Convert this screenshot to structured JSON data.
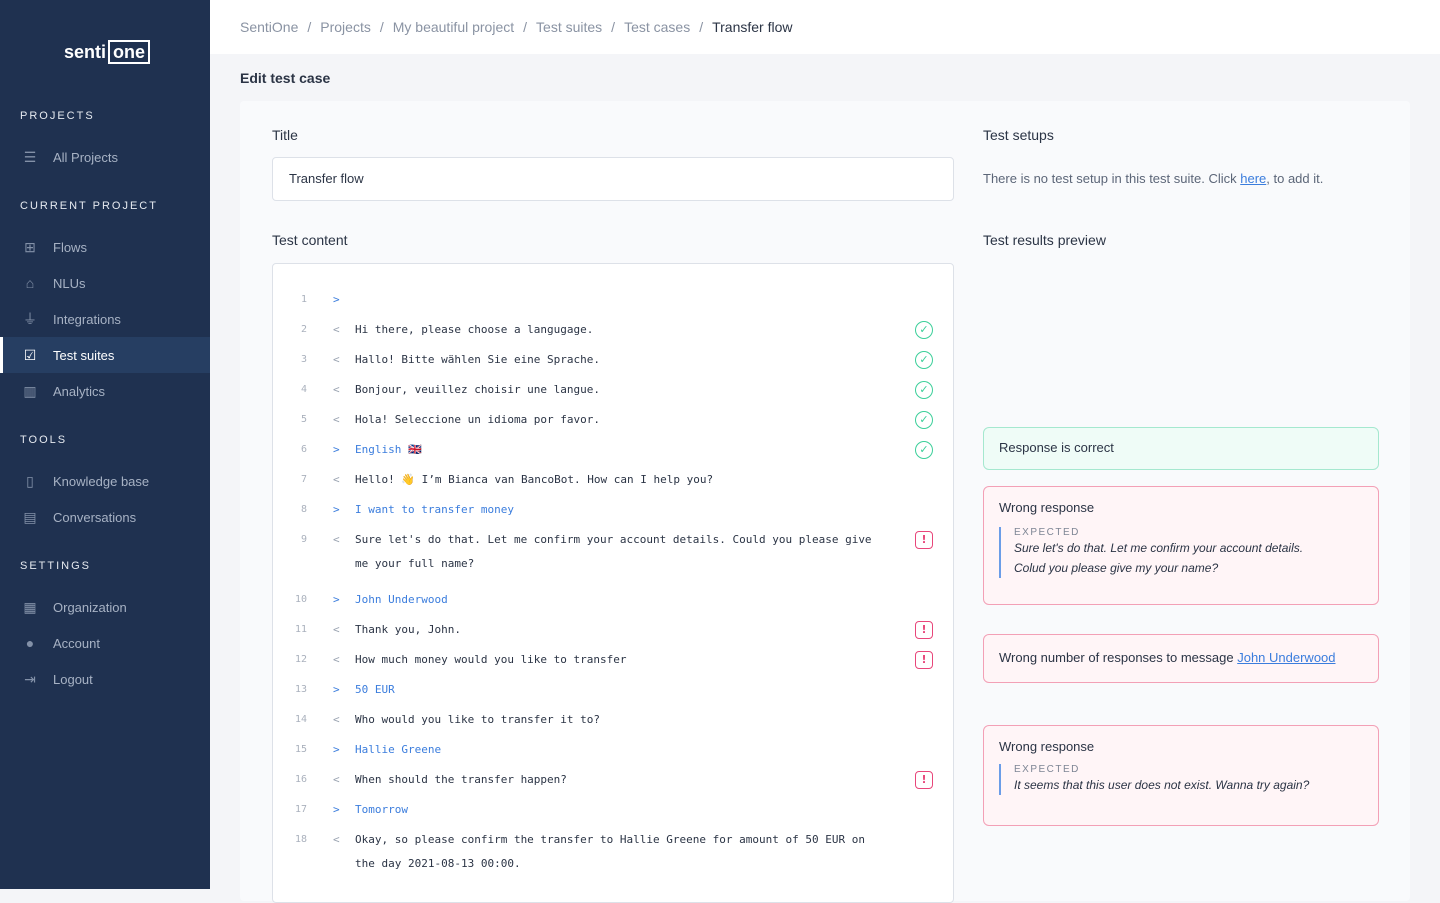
{
  "logo": {
    "text": "senti",
    "box": "one"
  },
  "sidebar": {
    "sections": [
      "PROJECTS",
      "CURRENT PROJECT",
      "TOOLS",
      "SETTINGS"
    ],
    "items": [
      {
        "label": "All Projects",
        "icon": "list-icon",
        "glyph": "☰"
      },
      {
        "label": "Flows",
        "icon": "flows-icon",
        "glyph": "⊞"
      },
      {
        "label": "NLUs",
        "icon": "graduation-cap-icon",
        "glyph": "⌂"
      },
      {
        "label": "Integrations",
        "icon": "plug-icon",
        "glyph": "⏚"
      },
      {
        "label": "Test suites",
        "icon": "test-suites-icon",
        "glyph": "☑"
      },
      {
        "label": "Analytics",
        "icon": "analytics-icon",
        "glyph": "▥"
      },
      {
        "label": "Knowledge base",
        "icon": "book-icon",
        "glyph": "▯"
      },
      {
        "label": "Conversations",
        "icon": "chat-icon",
        "glyph": "▤"
      },
      {
        "label": "Organization",
        "icon": "building-icon",
        "glyph": "▦"
      },
      {
        "label": "Account",
        "icon": "user-icon",
        "glyph": "●"
      },
      {
        "label": "Logout",
        "icon": "logout-icon",
        "glyph": "⇥"
      }
    ]
  },
  "breadcrumb": [
    "SentiOne",
    "Projects",
    "My beautiful project",
    "Test suites",
    "Test cases",
    "Transfer flow"
  ],
  "page_title": "Edit test case",
  "form": {
    "title_label": "Title",
    "title_value": "Transfer flow",
    "content_label": "Test content",
    "setups_label": "Test setups",
    "setups_text": "There is no test setup in this test suite. Click ",
    "setups_link": "here",
    "setups_after": ", to add it.",
    "preview_label": "Test results preview"
  },
  "lines": [
    {
      "n": "1",
      "dir": ">",
      "text": "",
      "status": ""
    },
    {
      "n": "2",
      "dir": "<",
      "text": "Hi there, please choose a langugage.",
      "status": "ok"
    },
    {
      "n": "3",
      "dir": "<",
      "text": "Hallo! Bitte wählen Sie eine Sprache.",
      "status": "ok"
    },
    {
      "n": "4",
      "dir": "<",
      "text": "Bonjour, veuillez choisir une langue.",
      "status": "ok"
    },
    {
      "n": "5",
      "dir": "<",
      "text": "Hola! Seleccione un idioma por favor.",
      "status": "ok"
    },
    {
      "n": "6",
      "dir": ">",
      "text": "English 🇬🇧",
      "status": "ok"
    },
    {
      "n": "7",
      "dir": "<",
      "text": "Hello! 👋 I’m Bianca van BancoBot. How can I help you?",
      "status": ""
    },
    {
      "n": "8",
      "dir": ">",
      "text": "I want to transfer money",
      "status": ""
    },
    {
      "n": "9",
      "dir": "<",
      "text": "Sure let's do that. Let me confirm your account details. Could you please give me your full name?",
      "status": "error"
    },
    {
      "n": "10",
      "dir": ">",
      "text": "John Underwood",
      "status": ""
    },
    {
      "n": "11",
      "dir": "<",
      "text": "Thank you, John.",
      "status": "error"
    },
    {
      "n": "12",
      "dir": "<",
      "text": "How much money would you like to transfer",
      "status": "error"
    },
    {
      "n": "13",
      "dir": ">",
      "text": "50 EUR",
      "status": ""
    },
    {
      "n": "14",
      "dir": "<",
      "text": "Who would you like to transfer it to?",
      "status": ""
    },
    {
      "n": "15",
      "dir": ">",
      "text": "Hallie Greene",
      "status": ""
    },
    {
      "n": "16",
      "dir": "<",
      "text": "When should the transfer happen?",
      "status": "error"
    },
    {
      "n": "17",
      "dir": ">",
      "text": "Tomorrow",
      "status": ""
    },
    {
      "n": "18",
      "dir": "<",
      "text": "Okay, so please confirm the transfer to Hallie Greene for amount of 50 EUR on the day 2021-08-13 00:00.",
      "status": ""
    }
  ],
  "results": {
    "correct": "Response is correct",
    "wrong1": {
      "title": "Wrong response",
      "expected_label": "EXPECTED",
      "expected": "Sure let's do that. Let me confirm your account details.",
      "expected2": "Colud you please give my your name?"
    },
    "count": {
      "text": "Wrong number of responses to message ",
      "link": "John Underwood"
    },
    "wrong2": {
      "title": "Wrong response",
      "expected_label": "EXPECTED",
      "expected": "It seems that this user does not exist. Wanna try again?"
    }
  },
  "colors": {
    "sidebar": "#1f3150",
    "accent": "#3b7ddd",
    "success": "#3ccf9a",
    "error": "#e8467a"
  }
}
